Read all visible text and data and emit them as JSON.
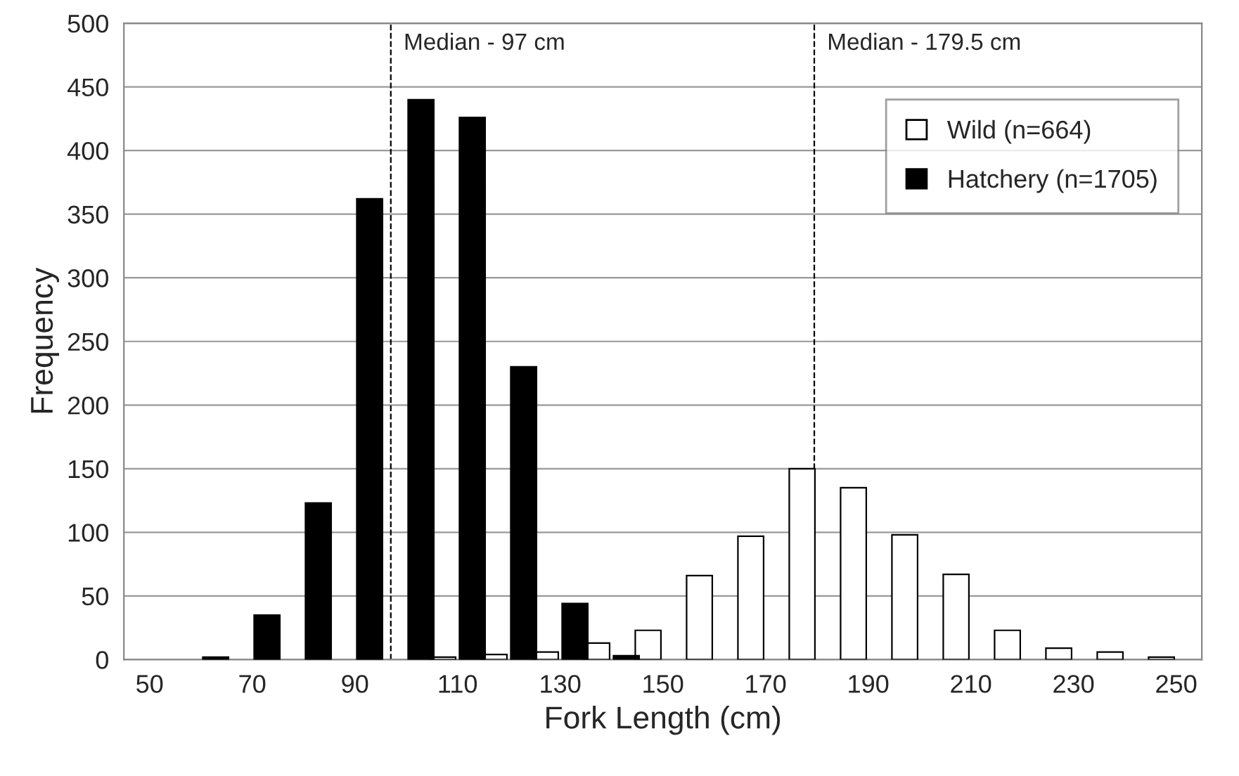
{
  "chart_data": {
    "type": "bar",
    "xlabel": "Fork Length (cm)",
    "ylabel": "Frequency",
    "x": [
      60,
      70,
      80,
      90,
      100,
      110,
      120,
      130,
      140,
      150,
      160,
      170,
      180,
      190,
      200,
      210,
      220,
      230,
      240,
      250
    ],
    "series": [
      {
        "name": "Wild (n=664)",
        "color": "#ffffff",
        "values": [
          null,
          null,
          null,
          null,
          null,
          2,
          4,
          6,
          13,
          23,
          66,
          97,
          150,
          135,
          98,
          67,
          23,
          9,
          6,
          2
        ]
      },
      {
        "name": "Hatchery (n=1705)",
        "color": "#000000",
        "values": [
          2,
          35,
          123,
          362,
          440,
          426,
          230,
          44,
          3,
          null,
          null,
          null,
          null,
          null,
          null,
          null,
          null,
          null,
          null,
          null
        ]
      }
    ],
    "xlim": [
      45,
      255
    ],
    "xticks": [
      50,
      70,
      90,
      110,
      130,
      150,
      170,
      190,
      210,
      230,
      250
    ],
    "ylim": [
      0,
      500
    ],
    "yticks": [
      0,
      50,
      100,
      150,
      200,
      250,
      300,
      350,
      400,
      450,
      500
    ],
    "ref_lines": [
      {
        "axis": "x",
        "value": 97,
        "label": "Median - 97 cm",
        "color": "#000000",
        "line_style": "dashed"
      },
      {
        "axis": "x",
        "value": 179.5,
        "label": "Median - 179.5 cm",
        "color": "#000000",
        "line_style": "dashed"
      }
    ],
    "grid": "y",
    "legend": "top right"
  }
}
